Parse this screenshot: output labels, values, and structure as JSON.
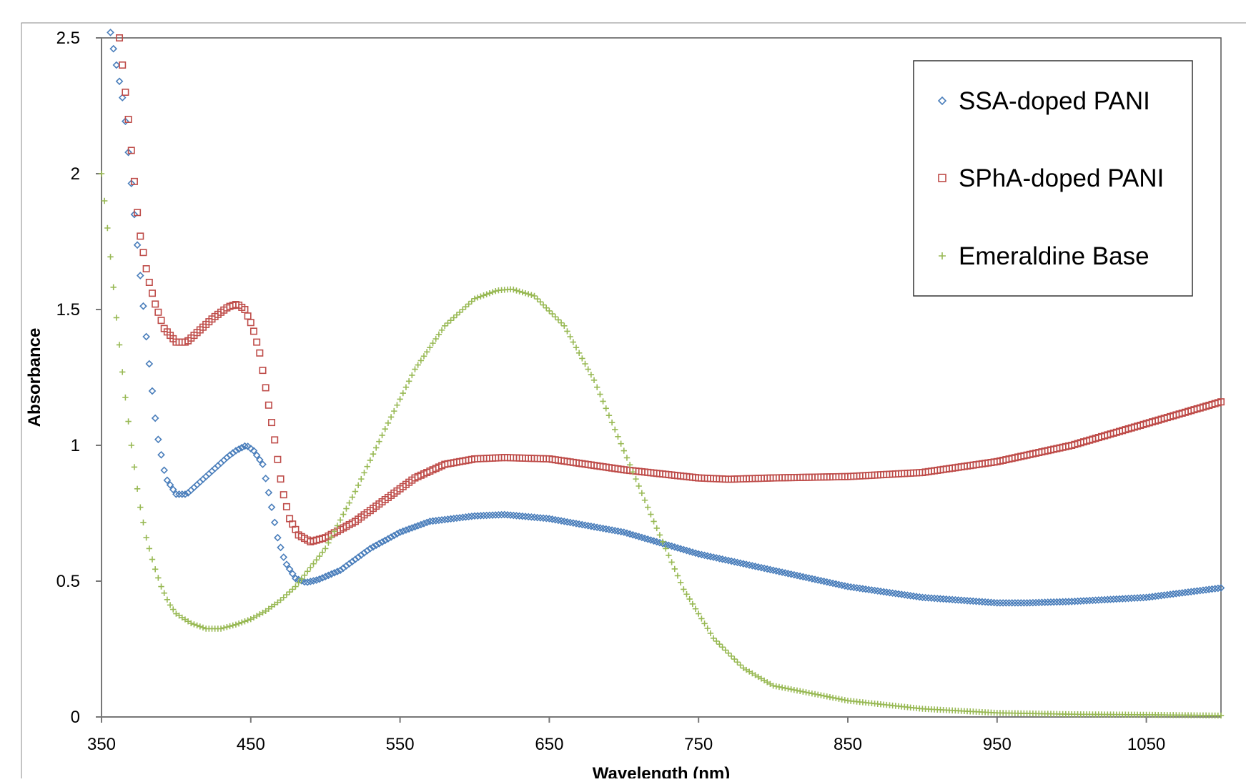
{
  "chart_data": {
    "type": "scatter",
    "title": "",
    "xlabel": "Wavelength (nm)",
    "ylabel": "Absorbance",
    "xlim": [
      350,
      1100
    ],
    "ylim": [
      0,
      2.5
    ],
    "x_ticks": [
      350,
      450,
      550,
      650,
      750,
      850,
      950,
      1050
    ],
    "y_ticks": [
      0,
      0.5,
      1,
      1.5,
      2,
      2.5
    ],
    "y_tick_labels": [
      "0",
      "0.5",
      "1",
      "1.5",
      "2",
      "2.5"
    ],
    "grid": false,
    "legend_position": "top-right",
    "x_step": 2,
    "series": [
      {
        "name": "SSA-doped PANI",
        "marker": "diamond-open",
        "color": "#4A7EBB",
        "anchors": [
          [
            356,
            2.52
          ],
          [
            365,
            2.25
          ],
          [
            372,
            1.85
          ],
          [
            380,
            1.4
          ],
          [
            387,
            1.05
          ],
          [
            393,
            0.88
          ],
          [
            400,
            0.82
          ],
          [
            407,
            0.82
          ],
          [
            415,
            0.86
          ],
          [
            425,
            0.91
          ],
          [
            435,
            0.96
          ],
          [
            440,
            0.98
          ],
          [
            447,
            1.0
          ],
          [
            452,
            0.98
          ],
          [
            458,
            0.93
          ],
          [
            463,
            0.8
          ],
          [
            468,
            0.66
          ],
          [
            473,
            0.57
          ],
          [
            480,
            0.51
          ],
          [
            487,
            0.495
          ],
          [
            495,
            0.505
          ],
          [
            510,
            0.54
          ],
          [
            530,
            0.62
          ],
          [
            550,
            0.68
          ],
          [
            570,
            0.72
          ],
          [
            600,
            0.74
          ],
          [
            620,
            0.745
          ],
          [
            650,
            0.73
          ],
          [
            700,
            0.68
          ],
          [
            750,
            0.6
          ],
          [
            800,
            0.54
          ],
          [
            850,
            0.48
          ],
          [
            900,
            0.44
          ],
          [
            950,
            0.42
          ],
          [
            970,
            0.42
          ],
          [
            1000,
            0.425
          ],
          [
            1050,
            0.44
          ],
          [
            1100,
            0.475
          ]
        ]
      },
      {
        "name": "SPhA-doped PANI",
        "marker": "square-open",
        "color": "#BE4B48",
        "anchors": [
          [
            362,
            2.5
          ],
          [
            368,
            2.2
          ],
          [
            375,
            1.8
          ],
          [
            381,
            1.62
          ],
          [
            386,
            1.52
          ],
          [
            392,
            1.43
          ],
          [
            400,
            1.38
          ],
          [
            407,
            1.38
          ],
          [
            415,
            1.42
          ],
          [
            425,
            1.47
          ],
          [
            435,
            1.51
          ],
          [
            441,
            1.52
          ],
          [
            446,
            1.5
          ],
          [
            451,
            1.44
          ],
          [
            456,
            1.34
          ],
          [
            461,
            1.18
          ],
          [
            466,
            1.02
          ],
          [
            471,
            0.84
          ],
          [
            476,
            0.73
          ],
          [
            482,
            0.67
          ],
          [
            490,
            0.645
          ],
          [
            500,
            0.66
          ],
          [
            520,
            0.72
          ],
          [
            540,
            0.8
          ],
          [
            560,
            0.88
          ],
          [
            580,
            0.93
          ],
          [
            600,
            0.95
          ],
          [
            620,
            0.955
          ],
          [
            650,
            0.95
          ],
          [
            700,
            0.91
          ],
          [
            750,
            0.88
          ],
          [
            770,
            0.875
          ],
          [
            800,
            0.88
          ],
          [
            850,
            0.885
          ],
          [
            900,
            0.9
          ],
          [
            950,
            0.94
          ],
          [
            1000,
            1.0
          ],
          [
            1050,
            1.08
          ],
          [
            1100,
            1.16
          ]
        ]
      },
      {
        "name": "Emeraldine Base",
        "marker": "plus",
        "color": "#98B954",
        "anchors": [
          [
            350,
            2.0
          ],
          [
            355,
            1.75
          ],
          [
            360,
            1.47
          ],
          [
            365,
            1.22
          ],
          [
            370,
            1.0
          ],
          [
            375,
            0.8
          ],
          [
            380,
            0.66
          ],
          [
            385,
            0.56
          ],
          [
            390,
            0.48
          ],
          [
            395,
            0.42
          ],
          [
            400,
            0.38
          ],
          [
            410,
            0.345
          ],
          [
            420,
            0.325
          ],
          [
            430,
            0.325
          ],
          [
            440,
            0.34
          ],
          [
            450,
            0.36
          ],
          [
            460,
            0.39
          ],
          [
            470,
            0.43
          ],
          [
            480,
            0.48
          ],
          [
            500,
            0.62
          ],
          [
            520,
            0.83
          ],
          [
            540,
            1.06
          ],
          [
            560,
            1.28
          ],
          [
            580,
            1.44
          ],
          [
            600,
            1.54
          ],
          [
            615,
            1.57
          ],
          [
            625,
            1.575
          ],
          [
            640,
            1.55
          ],
          [
            660,
            1.44
          ],
          [
            680,
            1.24
          ],
          [
            700,
            0.98
          ],
          [
            720,
            0.72
          ],
          [
            740,
            0.47
          ],
          [
            760,
            0.29
          ],
          [
            780,
            0.18
          ],
          [
            800,
            0.115
          ],
          [
            850,
            0.06
          ],
          [
            900,
            0.03
          ],
          [
            950,
            0.015
          ],
          [
            1000,
            0.01
          ],
          [
            1050,
            0.008
          ],
          [
            1100,
            0.005
          ]
        ]
      }
    ]
  }
}
